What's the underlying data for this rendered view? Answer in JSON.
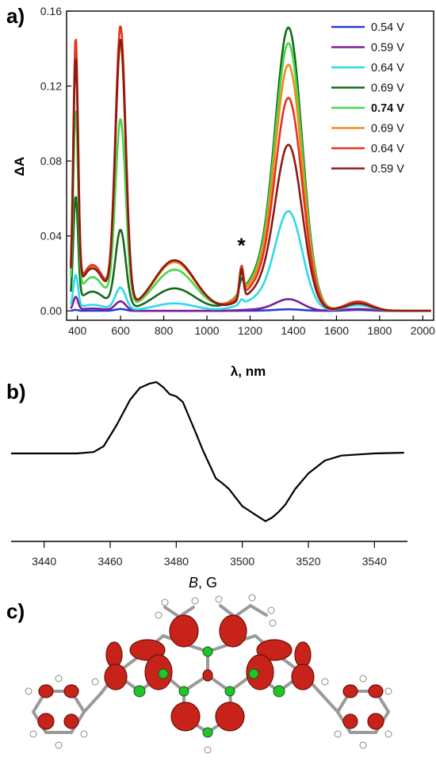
{
  "chart_data": [
    {
      "panel": "a)",
      "type": "line",
      "xlabel": "λ, nm",
      "ylabel": "ΔA",
      "xlim": [
        350,
        2050
      ],
      "ylim": [
        -0.005,
        0.16
      ],
      "xticks": [
        400,
        600,
        800,
        1000,
        1200,
        1400,
        1600,
        1800,
        2000
      ],
      "yticks": [
        0.0,
        0.04,
        0.08,
        0.12,
        0.16
      ],
      "ytick_labels": [
        "0.00",
        "0.04",
        "0.08",
        "0.12",
        "0.16"
      ],
      "annotation": "*",
      "annotation_x": 1160,
      "annotation_y": 0.038,
      "legend_position": "top-right",
      "series": [
        {
          "name": "0.54 V",
          "color": "#2a3bd6",
          "bold": false,
          "p1": 0.0005,
          "p2": 0.001,
          "p3": 0.0,
          "p4": 0.0,
          "p5": 0.0008,
          "p6": 0.0005
        },
        {
          "name": "0.59 V",
          "color": "#7a1f9a",
          "bold": false,
          "p1": 0.007,
          "p2": 0.005,
          "p3": 0.0,
          "p4": 0.0,
          "p5": 0.006,
          "p6": 0.001
        },
        {
          "name": "0.64 V",
          "color": "#2fd9e8",
          "bold": false,
          "p1": 0.018,
          "p2": 0.012,
          "p3": 0.004,
          "p4": 0.003,
          "p5": 0.051,
          "p6": 0.003
        },
        {
          "name": "0.69 V",
          "color": "#136b1a",
          "bold": false,
          "p1": 0.057,
          "p2": 0.042,
          "p3": 0.012,
          "p4": 0.008,
          "p5": 0.145,
          "p6": 0.004
        },
        {
          "name": "0.74 V",
          "color": "#49d64a",
          "bold": true,
          "p1": 0.1,
          "p2": 0.1,
          "p3": 0.022,
          "p4": 0.013,
          "p5": 0.137,
          "p6": 0.005
        },
        {
          "name": "0.69 V",
          "color": "#f08c1a",
          "bold": false,
          "p1": 0.13,
          "p2": 0.14,
          "p3": 0.026,
          "p4": 0.018,
          "p5": 0.126,
          "p6": 0.005
        },
        {
          "name": "0.64 V",
          "color": "#e23520",
          "bold": false,
          "p1": 0.136,
          "p2": 0.149,
          "p3": 0.027,
          "p4": 0.02,
          "p5": 0.109,
          "p6": 0.005
        },
        {
          "name": "0.59 V",
          "color": "#8b1a14",
          "bold": false,
          "p1": 0.126,
          "p2": 0.142,
          "p3": 0.027,
          "p4": 0.02,
          "p5": 0.085,
          "p6": 0.004
        }
      ]
    },
    {
      "panel": "b)",
      "type": "line",
      "xlabel_italic": "B",
      "xlabel_rest": ", G",
      "xlim": [
        3430,
        3550
      ],
      "xticks": [
        3440,
        3460,
        3480,
        3500,
        3520,
        3540
      ],
      "series": [
        {
          "name": "",
          "color": "#000000",
          "x": [
            3430,
            3440,
            3450,
            3455,
            3458,
            3462,
            3466,
            3469,
            3472,
            3474,
            3476,
            3478,
            3480,
            3482,
            3484,
            3486,
            3488,
            3490,
            3492,
            3494,
            3496,
            3498,
            3500,
            3502,
            3504,
            3506,
            3507,
            3509,
            3511,
            3513,
            3516,
            3520,
            3525,
            3530,
            3540,
            3549
          ],
          "y": [
            0,
            0,
            0,
            0.02,
            0.1,
            0.4,
            0.75,
            0.92,
            0.98,
            1.0,
            0.93,
            0.83,
            0.8,
            0.72,
            0.5,
            0.28,
            0.05,
            -0.15,
            -0.35,
            -0.42,
            -0.5,
            -0.62,
            -0.74,
            -0.8,
            -0.86,
            -0.92,
            -0.95,
            -0.9,
            -0.82,
            -0.72,
            -0.5,
            -0.28,
            -0.1,
            -0.03,
            0,
            0.01
          ]
        }
      ]
    }
  ],
  "panel_c": {
    "label": "c)"
  }
}
